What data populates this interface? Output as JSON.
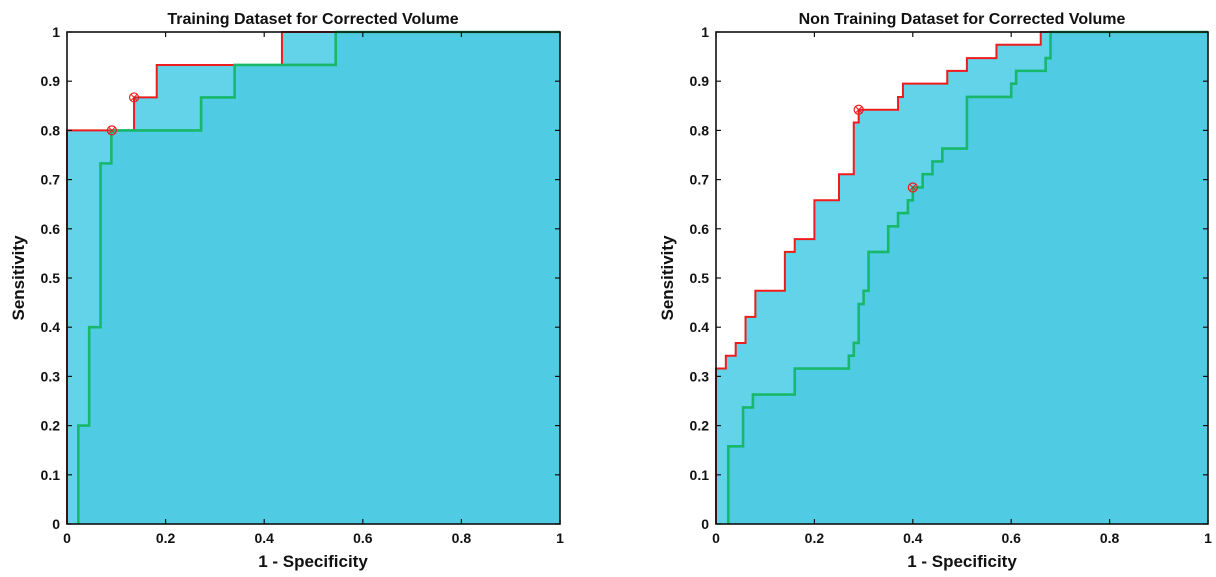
{
  "colors": {
    "background": "#ffffff",
    "area_dark": "#4fcbe3",
    "area_light": "#62d3e9",
    "upper_curve": "#ee1c1c",
    "lower_curve": "#18b86a",
    "marker": "#ee1c1c",
    "axis": "#111111"
  },
  "chart_data": [
    {
      "type": "line",
      "title": "Training Dataset for Corrected Volume",
      "xlabel": "1 - Specificity",
      "ylabel": "Sensitivity",
      "xlim": [
        0,
        1
      ],
      "ylim": [
        0,
        1
      ],
      "xticks": [
        "0",
        "0.2",
        "0.4",
        "0.6",
        "0.8",
        "1"
      ],
      "yticks": [
        "0",
        "0.1",
        "0.2",
        "0.3",
        "0.4",
        "0.5",
        "0.6",
        "0.7",
        "0.8",
        "0.9",
        "1"
      ],
      "grid": false,
      "fill": "area under both step curves shaded cyan",
      "series": [
        {
          "color": "#ee1c1c",
          "x": [
            0,
            0,
            0.136,
            0.136,
            0.182,
            0.182,
            0.436,
            0.436,
            1
          ],
          "y": [
            0,
            0.8,
            0.8,
            0.867,
            0.867,
            0.933,
            0.933,
            1,
            1
          ]
        },
        {
          "color": "#18b86a",
          "x": [
            0.023,
            0.023,
            0.045,
            0.045,
            0.068,
            0.068,
            0.09,
            0.09,
            0.272,
            0.272,
            0.34,
            0.34,
            0.545,
            0.545,
            1
          ],
          "y": [
            0,
            0.2,
            0.2,
            0.4,
            0.4,
            0.733,
            0.733,
            0.8,
            0.8,
            0.867,
            0.867,
            0.933,
            0.933,
            1,
            1
          ]
        }
      ],
      "markers": [
        {
          "x": 0.091,
          "y": 0.8
        },
        {
          "x": 0.136,
          "y": 0.867
        }
      ]
    },
    {
      "type": "line",
      "title": "Non Training Dataset for Corrected Volume",
      "xlabel": "1 - Specificity",
      "ylabel": "Sensitivity",
      "xlim": [
        0,
        1
      ],
      "ylim": [
        0,
        1
      ],
      "xticks": [
        "0",
        "0.2",
        "0.4",
        "0.6",
        "0.8",
        "1"
      ],
      "yticks": [
        "0",
        "0.1",
        "0.2",
        "0.3",
        "0.4",
        "0.5",
        "0.6",
        "0.7",
        "0.8",
        "0.9",
        "1"
      ],
      "grid": false,
      "fill": "area under both step curves shaded cyan",
      "series": [
        {
          "color": "#ee1c1c",
          "x": [
            0,
            0,
            0.02,
            0.02,
            0.04,
            0.04,
            0.06,
            0.06,
            0.08,
            0.08,
            0.14,
            0.14,
            0.16,
            0.16,
            0.2,
            0.2,
            0.25,
            0.25,
            0.28,
            0.28,
            0.29,
            0.29,
            0.37,
            0.37,
            0.38,
            0.38,
            0.47,
            0.47,
            0.51,
            0.51,
            0.57,
            0.57,
            0.66,
            0.66,
            1
          ],
          "y": [
            0,
            0.316,
            0.316,
            0.342,
            0.342,
            0.368,
            0.368,
            0.421,
            0.421,
            0.474,
            0.474,
            0.553,
            0.553,
            0.579,
            0.579,
            0.658,
            0.658,
            0.711,
            0.711,
            0.816,
            0.816,
            0.842,
            0.842,
            0.868,
            0.868,
            0.895,
            0.895,
            0.921,
            0.921,
            0.947,
            0.947,
            0.974,
            0.974,
            1,
            1
          ]
        },
        {
          "color": "#18b86a",
          "x": [
            0.025,
            0.025,
            0.055,
            0.055,
            0.075,
            0.075,
            0.16,
            0.16,
            0.27,
            0.27,
            0.28,
            0.28,
            0.29,
            0.29,
            0.3,
            0.3,
            0.31,
            0.31,
            0.32,
            0.32,
            0.35,
            0.35,
            0.37,
            0.37,
            0.39,
            0.39,
            0.4,
            0.4,
            0.42,
            0.42,
            0.44,
            0.44,
            0.45,
            0.45,
            0.46,
            0.46,
            0.51,
            0.51,
            0.6,
            0.6,
            0.61,
            0.61,
            0.67,
            0.67,
            0.68,
            0.68,
            0.7,
            0.7,
            1
          ],
          "y": [
            0,
            0.158,
            0.158,
            0.237,
            0.237,
            0.263,
            0.263,
            0.316,
            0.316,
            0.342,
            0.342,
            0.368,
            0.368,
            0.447,
            0.447,
            0.474,
            0.474,
            0.553,
            0.553,
            0.553,
            0.553,
            0.605,
            0.605,
            0.632,
            0.632,
            0.658,
            0.658,
            0.684,
            0.684,
            0.711,
            0.711,
            0.737,
            0.737,
            0.737,
            0.737,
            0.763,
            0.763,
            0.868,
            0.868,
            0.895,
            0.895,
            0.921,
            0.921,
            0.947,
            0.947,
            1,
            1,
            1,
            1
          ]
        }
      ],
      "markers": [
        {
          "x": 0.29,
          "y": 0.842
        },
        {
          "x": 0.4,
          "y": 0.684
        }
      ]
    }
  ]
}
